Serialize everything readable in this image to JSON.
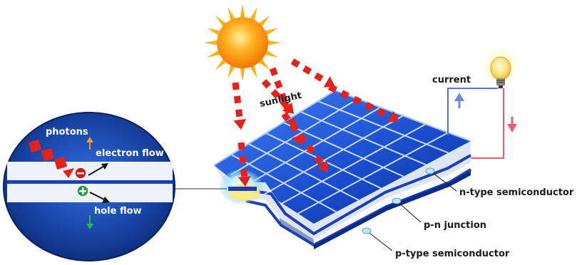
{
  "labels": {
    "sunlight": "sunlight",
    "current": "current",
    "photons": "photons",
    "electron_flow": "electron flow",
    "hole_flow": "hole flow",
    "n_type": "n-type semiconductor",
    "pn_junction": "p-n junction",
    "p_type": "p-type semiconductor"
  },
  "colors": {
    "ray": "#e8201a",
    "sun": "#ff9c0a",
    "panel_blue": "#1846c8",
    "wire_blue": "#5b6ee0",
    "wire_red": "#ee5c6a",
    "circle_bg": "#0f2f8a"
  },
  "icons": [
    "sun-icon",
    "light-bulb-icon",
    "electron-minus-icon",
    "hole-plus-icon"
  ]
}
